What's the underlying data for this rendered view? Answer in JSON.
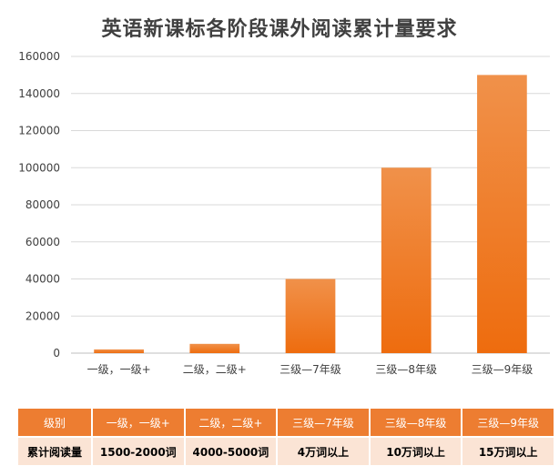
{
  "chart_data": {
    "type": "bar",
    "title": "英语新课标各阶段课外阅读累计量要求",
    "categories": [
      "一级，一级+",
      "二级，二级+",
      "三级—7年级",
      "三级—8年级",
      "三级—9年级"
    ],
    "values": [
      2000,
      5000,
      40000,
      100000,
      150000
    ],
    "ylim": [
      0,
      160000
    ],
    "yticks": [
      "0",
      "20000",
      "40000",
      "60000",
      "80000",
      "100000",
      "120000",
      "140000",
      "160000"
    ],
    "grid": true,
    "bar_color_top": "#f0914a",
    "bar_color_bottom": "#ee6c0e"
  },
  "table": {
    "header": [
      "级别",
      "一级，一级+",
      "二级，二级+",
      "三级—7年级",
      "三级—8年级",
      "三级—9年级"
    ],
    "row": [
      "累计阅读量",
      "1500-2000词",
      "4000-5000词",
      "4万词以上",
      "10万词以上",
      "15万词以上"
    ],
    "header_color": "#ed7d31",
    "row_color": "#fbe4d5"
  }
}
